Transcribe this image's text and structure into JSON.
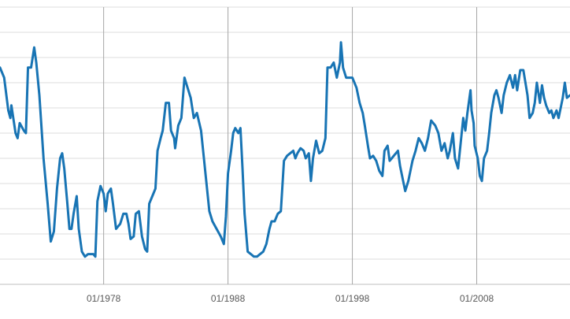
{
  "chart_data": {
    "type": "line",
    "x": [
      "1969-09",
      "1970-01",
      "1970-05",
      "1970-07",
      "1970-08",
      "1970-12",
      "1971-02",
      "1971-04",
      "1971-08",
      "1971-10",
      "1971-12",
      "1972-03",
      "1972-06",
      "1972-08",
      "1972-11",
      "1973-03",
      "1973-07",
      "1973-10",
      "1974-01",
      "1974-04",
      "1974-07",
      "1974-09",
      "1974-11",
      "1975-02",
      "1975-04",
      "1975-06",
      "1975-08",
      "1975-11",
      "1976-01",
      "1976-04",
      "1976-07",
      "1976-10",
      "1977-03",
      "1977-05",
      "1977-07",
      "1977-10",
      "1978-01",
      "1978-03",
      "1978-05",
      "1978-08",
      "1978-10",
      "1979-01",
      "1979-05",
      "1979-08",
      "1979-11",
      "1980-01",
      "1980-03",
      "1980-06",
      "1980-08",
      "1980-11",
      "1981-02",
      "1981-05",
      "1981-07",
      "1981-09",
      "1981-12",
      "1982-03",
      "1982-05",
      "1982-08",
      "1982-10",
      "1983-01",
      "1983-04",
      "1983-06",
      "1983-09",
      "1983-10",
      "1984-01",
      "1984-04",
      "1984-07",
      "1984-10",
      "1985-01",
      "1985-04",
      "1985-07",
      "1985-11",
      "1986-01",
      "1986-04",
      "1986-07",
      "1986-10",
      "1987-02",
      "1987-06",
      "1987-09",
      "1987-11",
      "1988-01",
      "1988-04",
      "1988-06",
      "1988-08",
      "1988-11",
      "1989-01",
      "1989-03",
      "1989-05",
      "1989-08",
      "1989-11",
      "1990-02",
      "1990-05",
      "1990-08",
      "1990-11",
      "1991-02",
      "1991-05",
      "1991-07",
      "1991-10",
      "1992-01",
      "1992-04",
      "1992-07",
      "1992-10",
      "1993-01",
      "1993-04",
      "1993-06",
      "1993-08",
      "1993-11",
      "1994-02",
      "1994-04",
      "1994-07",
      "1994-09",
      "1994-11",
      "1995-02",
      "1995-05",
      "1995-08",
      "1995-11",
      "1996-01",
      "1996-04",
      "1996-07",
      "1996-10",
      "1997-01",
      "1997-02",
      "1997-04",
      "1997-07",
      "1997-10",
      "1998-01",
      "1998-05",
      "1998-08",
      "1998-11",
      "1999-01",
      "1999-04",
      "1999-06",
      "1999-09",
      "1999-12",
      "2000-03",
      "2000-06",
      "2000-08",
      "2000-11",
      "2001-01",
      "2001-03",
      "2001-07",
      "2001-09",
      "2001-11",
      "2002-01",
      "2002-04",
      "2002-07",
      "2002-09",
      "2002-11",
      "2003-02",
      "2003-05",
      "2003-08",
      "2003-11",
      "2004-02",
      "2004-05",
      "2004-09",
      "2004-12",
      "2005-03",
      "2005-06",
      "2005-09",
      "2005-11",
      "2006-02",
      "2006-04",
      "2006-07",
      "2006-10",
      "2006-12",
      "2007-02",
      "2007-04",
      "2007-07",
      "2007-08",
      "2007-10",
      "2007-11",
      "2008-02",
      "2008-04",
      "2008-06",
      "2008-08",
      "2008-11",
      "2009-01",
      "2009-03",
      "2009-06",
      "2009-08",
      "2009-10",
      "2010-01",
      "2010-03",
      "2010-06",
      "2010-09",
      "2010-12",
      "2011-02",
      "2011-04",
      "2011-07",
      "2011-10",
      "2011-12",
      "2012-02",
      "2012-04",
      "2012-07",
      "2012-09",
      "2012-11",
      "2013-02",
      "2013-04",
      "2013-06",
      "2013-08",
      "2013-11",
      "2014-01",
      "2014-03",
      "2014-06",
      "2014-08",
      "2014-10",
      "2014-12",
      "2015-02",
      "2015-04",
      "2015-07"
    ],
    "values": [
      8.6,
      8.2,
      6.9,
      6.6,
      7.1,
      6.0,
      5.8,
      6.4,
      6.1,
      6.0,
      8.6,
      8.6,
      9.4,
      8.8,
      7.5,
      5.0,
      3.2,
      1.7,
      2.1,
      3.8,
      5.0,
      5.2,
      4.6,
      3.2,
      2.2,
      2.2,
      2.8,
      3.5,
      2.2,
      1.3,
      1.1,
      1.2,
      1.2,
      1.1,
      3.3,
      3.9,
      3.6,
      2.9,
      3.6,
      3.8,
      3.2,
      2.2,
      2.4,
      2.8,
      2.8,
      2.4,
      1.8,
      1.9,
      2.8,
      2.9,
      1.9,
      1.4,
      1.3,
      3.2,
      3.5,
      3.8,
      5.3,
      5.8,
      6.1,
      7.2,
      7.2,
      6.1,
      5.8,
      5.4,
      6.3,
      6.6,
      8.2,
      7.8,
      7.4,
      6.6,
      6.8,
      6.1,
      5.3,
      4.1,
      2.9,
      2.5,
      2.2,
      1.9,
      1.6,
      2.7,
      4.4,
      5.3,
      6.0,
      6.2,
      6.0,
      6.2,
      4.6,
      2.8,
      1.3,
      1.2,
      1.1,
      1.1,
      1.2,
      1.3,
      1.6,
      2.2,
      2.5,
      2.5,
      2.8,
      2.9,
      4.9,
      5.1,
      5.2,
      5.3,
      5.0,
      5.2,
      5.4,
      5.3,
      5.0,
      5.2,
      4.1,
      5.0,
      5.7,
      5.2,
      5.3,
      5.8,
      8.6,
      8.6,
      8.8,
      8.2,
      8.8,
      9.6,
      8.6,
      8.2,
      8.2,
      8.2,
      7.8,
      7.2,
      6.8,
      6.3,
      5.5,
      5.0,
      5.1,
      4.9,
      4.5,
      4.3,
      5.3,
      5.5,
      4.9,
      5.0,
      5.2,
      5.3,
      4.7,
      4.3,
      3.7,
      4.1,
      4.5,
      4.9,
      5.3,
      5.8,
      5.6,
      5.3,
      5.8,
      6.5,
      6.3,
      6.0,
      5.3,
      5.6,
      5.0,
      5.3,
      6.0,
      5.0,
      4.6,
      5.8,
      6.6,
      6.1,
      6.8,
      7.7,
      6.9,
      6.4,
      5.5,
      5.0,
      4.3,
      4.1,
      5.0,
      5.3,
      6.0,
      6.8,
      7.5,
      7.7,
      7.4,
      6.8,
      7.5,
      8.0,
      8.3,
      7.8,
      8.3,
      7.7,
      8.5,
      8.5,
      8.0,
      7.5,
      6.6,
      6.8,
      7.2,
      8.0,
      7.2,
      7.9,
      7.4,
      7.1,
      6.8,
      6.9,
      6.6,
      6.9,
      6.6,
      7.0,
      7.4,
      8.0,
      7.4,
      7.5
    ],
    "color": "#1874b4",
    "xlim": [
      "1969-09",
      "2015-07"
    ],
    "xticks": [
      {
        "value": "1978-01",
        "label": "01/1978"
      },
      {
        "value": "1988-01",
        "label": "01/1988"
      },
      {
        "value": "1998-01",
        "label": "01/1998"
      },
      {
        "value": "2008-01",
        "label": "01/2008"
      }
    ],
    "ylim": [
      0,
      11
    ],
    "yticks": [
      0,
      1,
      2,
      3,
      4,
      5,
      6,
      7,
      8,
      9,
      10,
      11
    ],
    "grid": true
  }
}
